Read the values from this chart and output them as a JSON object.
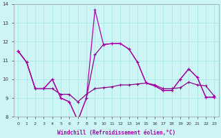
{
  "xlabel": "Windchill (Refroidissement éolien,°C)",
  "bg_color": "#cef5f5",
  "grid_color": "#aae8e8",
  "line_color_main": "#aa00aa",
  "line_color_flat": "#880088",
  "x": [
    0,
    1,
    2,
    3,
    4,
    5,
    6,
    7,
    8,
    9,
    10,
    11,
    12,
    13,
    14,
    15,
    16,
    17,
    18,
    19,
    20,
    21,
    22,
    23
  ],
  "y_spike": [
    11.5,
    10.9,
    9.5,
    9.5,
    10.0,
    9.0,
    8.8,
    7.8,
    9.0,
    13.7,
    11.85,
    11.9,
    11.9,
    11.6,
    10.9,
    9.8,
    9.65,
    9.4,
    9.4,
    10.0,
    10.55,
    10.1,
    9.05,
    9.05
  ],
  "y_mid": [
    11.5,
    10.9,
    9.5,
    9.5,
    10.0,
    9.0,
    8.8,
    7.8,
    9.0,
    11.3,
    11.85,
    11.9,
    11.9,
    11.6,
    10.9,
    9.8,
    9.65,
    9.4,
    9.4,
    10.0,
    10.55,
    10.1,
    9.05,
    9.05
  ],
  "y_flat": [
    11.5,
    10.9,
    9.5,
    9.5,
    9.5,
    9.2,
    9.2,
    8.8,
    9.2,
    9.5,
    9.55,
    9.6,
    9.7,
    9.7,
    9.75,
    9.8,
    9.7,
    9.5,
    9.5,
    9.55,
    9.85,
    9.7,
    9.65,
    9.1
  ],
  "ylim": [
    8,
    14
  ],
  "xlim": [
    -0.5,
    23.5
  ],
  "yticks": [
    8,
    9,
    10,
    11,
    12,
    13,
    14
  ],
  "xticks": [
    0,
    1,
    2,
    3,
    4,
    5,
    6,
    7,
    8,
    9,
    10,
    11,
    12,
    13,
    14,
    15,
    16,
    17,
    18,
    19,
    20,
    21,
    22,
    23
  ],
  "xlabel_fontsize": 5.5,
  "tick_fontsize": 5.0,
  "linewidth": 0.9,
  "markersize": 3.5
}
